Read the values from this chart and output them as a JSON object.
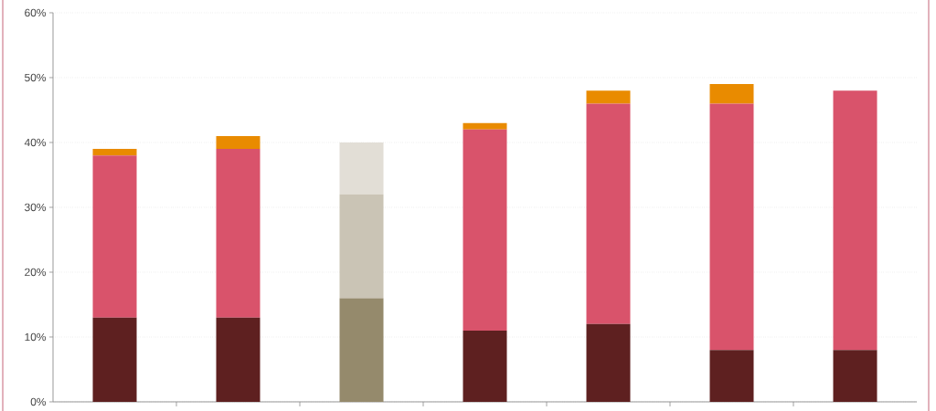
{
  "chart_data": {
    "type": "bar",
    "stacked": true,
    "categories": [
      null,
      null,
      null,
      null,
      null,
      null,
      null
    ],
    "series": [
      {
        "colors": [
          "#5e2020",
          "#5e2020",
          "#958a6c",
          "#5e2020",
          "#5e2020",
          "#5e2020",
          "#5e2020"
        ],
        "values": [
          13,
          13,
          16,
          11,
          12,
          8,
          8
        ]
      },
      {
        "colors": [
          "#d9536b",
          "#d9536b",
          "#cac4b5",
          "#d9536b",
          "#d9536b",
          "#d9536b",
          "#d9536b"
        ],
        "values": [
          25,
          26,
          16,
          31,
          34,
          38,
          40
        ]
      },
      {
        "colors": [
          "#e98b00",
          "#e98b00",
          "#e2ded6",
          "#e98b00",
          "#e98b00",
          "#e98b00",
          "#e98b00"
        ],
        "values": [
          1,
          2,
          8,
          1,
          2,
          3,
          null
        ]
      }
    ],
    "ylim": [
      0,
      60
    ],
    "yticks": [
      {
        "value": 0,
        "label": "0%"
      },
      {
        "value": 10,
        "label": "10%"
      },
      {
        "value": 20,
        "label": "20%"
      },
      {
        "value": 30,
        "label": "30%"
      },
      {
        "value": 40,
        "label": "40%"
      },
      {
        "value": 50,
        "label": "50%"
      },
      {
        "value": 60,
        "label": "60%"
      }
    ],
    "grid": "y"
  }
}
